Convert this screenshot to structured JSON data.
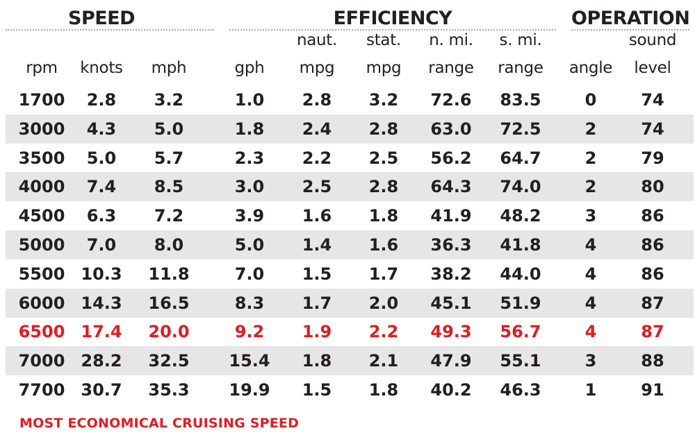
{
  "chart_data": {
    "type": "table",
    "groups": [
      "SPEED",
      "EFFICIENCY",
      "OPERATION"
    ],
    "columns": [
      {
        "line1": "",
        "line2": "rpm"
      },
      {
        "line1": "",
        "line2": "knots"
      },
      {
        "line1": "",
        "line2": "mph"
      },
      {
        "line1": "",
        "line2": "gph"
      },
      {
        "line1": "naut.",
        "line2": "mpg"
      },
      {
        "line1": "stat.",
        "line2": "mpg"
      },
      {
        "line1": "n. mi.",
        "line2": "range"
      },
      {
        "line1": "s. mi.",
        "line2": "range"
      },
      {
        "line1": "",
        "line2": "angle"
      },
      {
        "line1": "sound",
        "line2": "level"
      }
    ],
    "rows": [
      [
        "1700",
        "2.8",
        "3.2",
        "1.0",
        "2.8",
        "3.2",
        "72.6",
        "83.5",
        "0",
        "74"
      ],
      [
        "3000",
        "4.3",
        "5.0",
        "1.8",
        "2.4",
        "2.8",
        "63.0",
        "72.5",
        "2",
        "74"
      ],
      [
        "3500",
        "5.0",
        "5.7",
        "2.3",
        "2.2",
        "2.5",
        "56.2",
        "64.7",
        "2",
        "79"
      ],
      [
        "4000",
        "7.4",
        "8.5",
        "3.0",
        "2.5",
        "2.8",
        "64.3",
        "74.0",
        "2",
        "80"
      ],
      [
        "4500",
        "6.3",
        "7.2",
        "3.9",
        "1.6",
        "1.8",
        "41.9",
        "48.2",
        "3",
        "86"
      ],
      [
        "5000",
        "7.0",
        "8.0",
        "5.0",
        "1.4",
        "1.6",
        "36.3",
        "41.8",
        "4",
        "86"
      ],
      [
        "5500",
        "10.3",
        "11.8",
        "7.0",
        "1.5",
        "1.7",
        "38.2",
        "44.0",
        "4",
        "86"
      ],
      [
        "6000",
        "14.3",
        "16.5",
        "8.3",
        "1.7",
        "2.0",
        "45.1",
        "51.9",
        "4",
        "87"
      ],
      [
        "6500",
        "17.4",
        "20.0",
        "9.2",
        "1.9",
        "2.2",
        "49.3",
        "56.7",
        "4",
        "87"
      ],
      [
        "7000",
        "28.2",
        "32.5",
        "15.4",
        "1.8",
        "2.1",
        "47.9",
        "55.1",
        "3",
        "88"
      ],
      [
        "7700",
        "30.7",
        "35.3",
        "19.9",
        "1.5",
        "1.8",
        "40.2",
        "46.3",
        "1",
        "91"
      ]
    ],
    "highlight_row_rpm": "6500",
    "footnote": "MOST ECONOMICAL CRUISING SPEED"
  },
  "colors": {
    "text": "#231f20",
    "highlight": "#e31b23",
    "row_shade": "#e6e6e7",
    "rule": "#a8a8a8"
  }
}
